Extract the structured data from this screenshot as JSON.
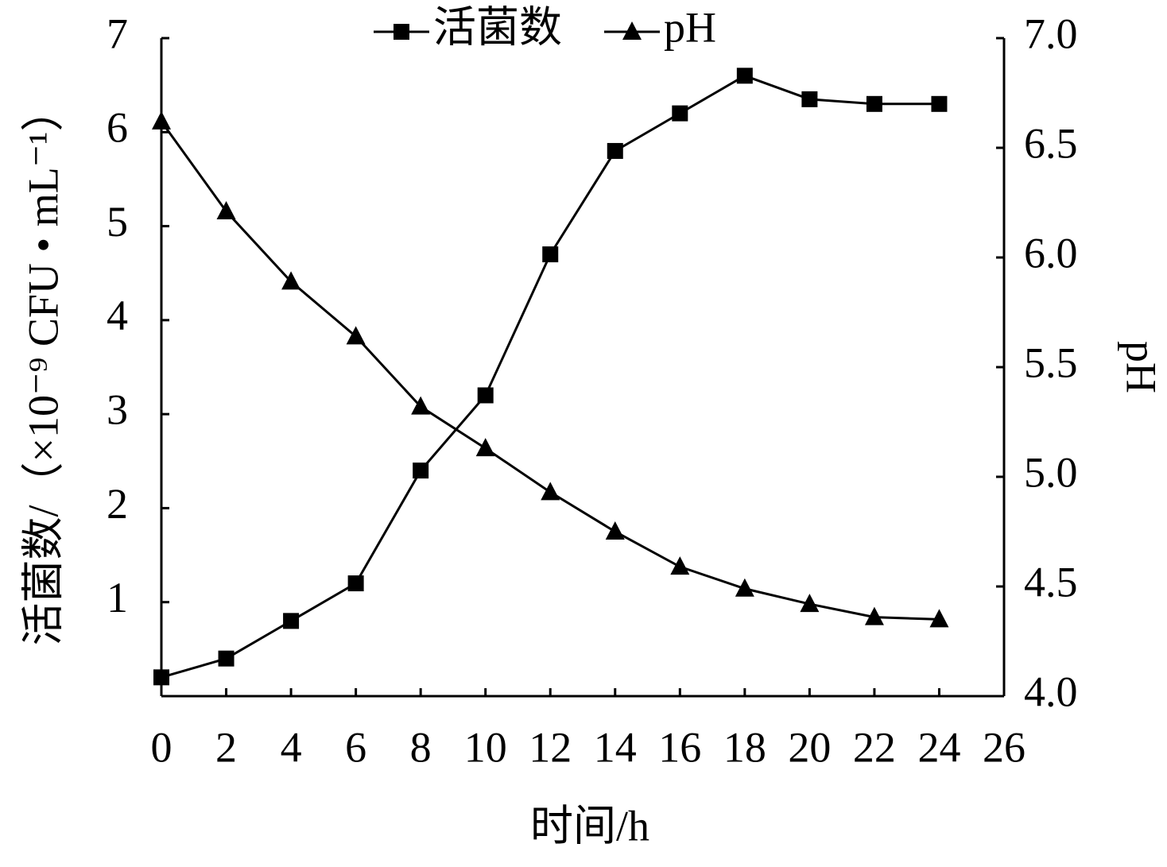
{
  "chart_data": {
    "type": "line",
    "x_label": "时间/h",
    "y_label": "活菌数/（×10⁻⁹ CFU • mL⁻¹）",
    "y2_label": "pH",
    "x": [
      0,
      2,
      4,
      6,
      8,
      10,
      12,
      14,
      16,
      18,
      20,
      22,
      24
    ],
    "xlim": [
      0,
      26
    ],
    "xticks": [
      0,
      2,
      4,
      6,
      8,
      10,
      12,
      14,
      16,
      18,
      20,
      22,
      24,
      26
    ],
    "ylim": [
      0,
      7
    ],
    "yticks": [
      1,
      2,
      3,
      4,
      5,
      6,
      7
    ],
    "y2lim": [
      4,
      7
    ],
    "y2ticks": [
      {
        "value": 4,
        "label": "4.0"
      },
      4.5,
      {
        "value": 5,
        "label": "5.0"
      },
      5.5,
      {
        "value": 6,
        "label": "6.0"
      },
      6.5,
      {
        "value": 7,
        "label": "7.0"
      }
    ],
    "series": [
      {
        "name": "活菌数",
        "color": "#000000",
        "marker": "square",
        "values": [
          0.2,
          0.4,
          0.8,
          1.2,
          2.4,
          3.2,
          4.7,
          5.8,
          6.2,
          6.6,
          6.35,
          6.3,
          6.3
        ]
      },
      {
        "name": "pH",
        "color": "#000000",
        "marker": "triangle",
        "axis": "y2",
        "values": [
          6.62,
          6.21,
          5.89,
          5.64,
          5.32,
          5.13,
          4.93,
          4.75,
          4.59,
          4.49,
          4.42,
          4.36,
          4.35
        ]
      }
    ]
  }
}
